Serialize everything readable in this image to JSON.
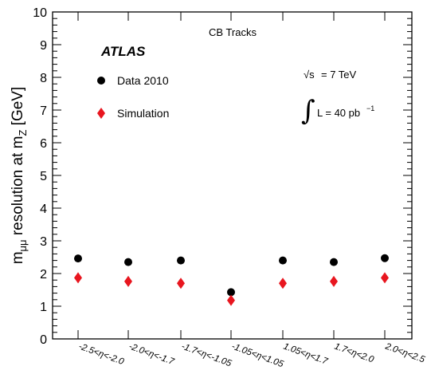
{
  "chart_data": {
    "type": "scatter",
    "categories": [
      {
        "a": "-2.5",
        "b": "-2.0"
      },
      {
        "a": "-2.0",
        "b": "-1.7"
      },
      {
        "a": "-1.7",
        "b": "-1.05"
      },
      {
        "a": "-1.05",
        "b": "1.05"
      },
      {
        "a": "1.05",
        "b": "1.7"
      },
      {
        "a": "1.7",
        "b": "2.0"
      },
      {
        "a": "2.0",
        "b": "2.5"
      }
    ],
    "series": [
      {
        "name": "Data 2010",
        "marker": "circle",
        "color": "#000000",
        "values": [
          2.46,
          2.35,
          2.4,
          1.43,
          2.4,
          2.35,
          2.47
        ]
      },
      {
        "name": "Simulation",
        "marker": "diamond",
        "color": "#e8161f",
        "values": [
          1.87,
          1.76,
          1.7,
          1.18,
          1.7,
          1.76,
          1.87
        ]
      }
    ],
    "ylim": [
      0,
      10
    ],
    "yticks": [
      "0",
      "1",
      "2",
      "3",
      "4",
      "5",
      "6",
      "7",
      "8",
      "9",
      "10"
    ],
    "ylabel": {
      "main": "m",
      "main_sub": "μμ",
      "rest": " resolution at m",
      "rest_sub": "Z",
      "unit": " [GeV]"
    },
    "title": "CB Tracks",
    "atlas_label": "ATLAS",
    "energy_label": {
      "sqrt": "√s",
      "text": "= 7 TeV"
    },
    "lumi_label": {
      "integral": "∫",
      "text": "L = 40 pb",
      "sup": "−1"
    },
    "eta_symbol": "η",
    "less_than": "<",
    "legend_placement": "top-left"
  }
}
